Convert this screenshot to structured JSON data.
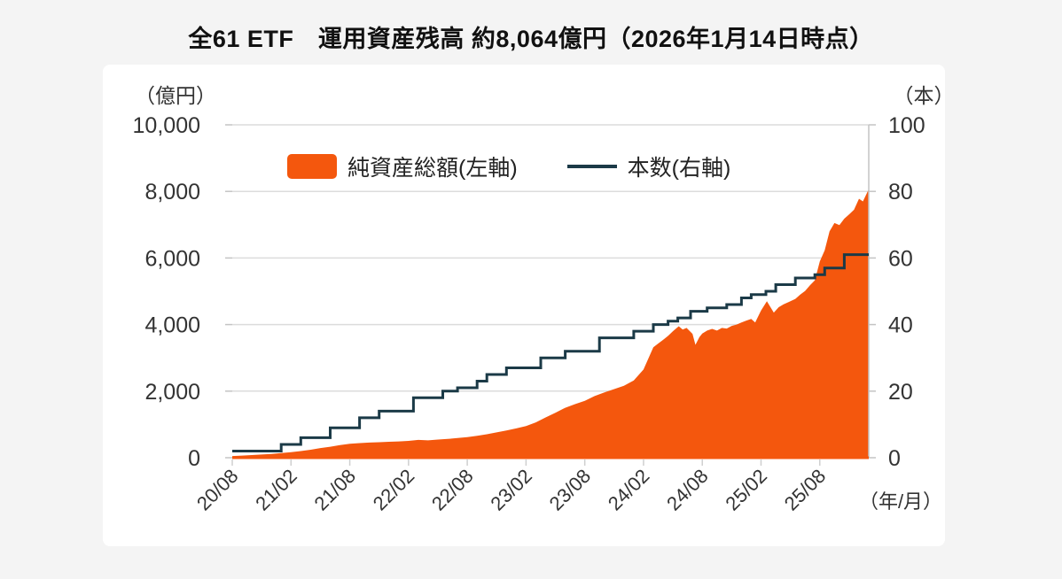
{
  "title": "全61 ETF　運用資産残高 約8,064億円（2026年1月14日時点）",
  "legend": {
    "area_label": "純資産総額(左軸)",
    "line_label": "本数(右軸)"
  },
  "axes_units": {
    "left": "（億円）",
    "right": "（本）",
    "x": "（年/月）"
  },
  "colors": {
    "page_bg": "#F4F4F4",
    "panel_bg": "#FFFFFF",
    "area": "#F4570D",
    "step_line": "#1B3A47",
    "grid": "#DCDCDC",
    "axis": "#C4C4C4",
    "tick_text": "#333333",
    "title_text": "#111111",
    "bottom_axis": "#F4570D"
  },
  "chart_data": {
    "type": "combo",
    "title": "全61 ETF　運用資産残高 約8,064億円（2026年1月14日時点）",
    "x_encoding": "months since 2020/08 (0 = 20/08, 65 = 26/01)",
    "x_axis": {
      "unit": "（年/月）",
      "tick_months": [
        0,
        6,
        12,
        18,
        24,
        30,
        36,
        42,
        48,
        54,
        60
      ],
      "tick_labels": [
        "20/08",
        "21/02",
        "21/08",
        "22/02",
        "22/08",
        "23/02",
        "23/08",
        "24/02",
        "24/08",
        "25/02",
        "25/08"
      ],
      "range_months": [
        0,
        65
      ]
    },
    "left_axis": {
      "unit": "（億円）",
      "tick_labels": [
        "10,000",
        "8,000",
        "6,000",
        "4,000",
        "2,000",
        "0"
      ],
      "tick_values": [
        10000,
        8000,
        6000,
        4000,
        2000,
        0
      ],
      "range": [
        0,
        10000
      ],
      "grid": true
    },
    "right_axis": {
      "unit": "（本）",
      "tick_labels": [
        "100",
        "80",
        "60",
        "40",
        "20",
        "0"
      ],
      "tick_values": [
        100,
        80,
        60,
        40,
        20,
        0
      ],
      "range": [
        0,
        100
      ],
      "grid": false
    },
    "legend_position": "top-inside",
    "series": [
      {
        "name": "純資産総額(左軸)",
        "type": "area",
        "axis": "left",
        "color": "#F4570D",
        "points": [
          [
            0,
            50
          ],
          [
            1,
            65
          ],
          [
            2,
            80
          ],
          [
            3,
            95
          ],
          [
            4,
            115
          ],
          [
            5,
            140
          ],
          [
            6,
            165
          ],
          [
            7,
            200
          ],
          [
            8,
            240
          ],
          [
            9,
            290
          ],
          [
            10,
            330
          ],
          [
            11,
            380
          ],
          [
            12,
            420
          ],
          [
            13,
            440
          ],
          [
            14,
            455
          ],
          [
            15,
            465
          ],
          [
            16,
            480
          ],
          [
            17,
            490
          ],
          [
            18,
            505
          ],
          [
            19,
            535
          ],
          [
            20,
            520
          ],
          [
            21,
            545
          ],
          [
            22,
            565
          ],
          [
            23,
            590
          ],
          [
            24,
            620
          ],
          [
            25,
            660
          ],
          [
            26,
            705
          ],
          [
            27,
            760
          ],
          [
            28,
            820
          ],
          [
            29,
            880
          ],
          [
            30,
            950
          ],
          [
            31,
            1060
          ],
          [
            32,
            1210
          ],
          [
            33,
            1350
          ],
          [
            34,
            1500
          ],
          [
            35,
            1610
          ],
          [
            36,
            1710
          ],
          [
            37,
            1850
          ],
          [
            38,
            1960
          ],
          [
            39,
            2060
          ],
          [
            40,
            2160
          ],
          [
            41,
            2320
          ],
          [
            42,
            2650
          ],
          [
            42.6,
            3050
          ],
          [
            43,
            3320
          ],
          [
            43.5,
            3430
          ],
          [
            44,
            3540
          ],
          [
            44.5,
            3660
          ],
          [
            45,
            3800
          ],
          [
            45.6,
            3950
          ],
          [
            46,
            3850
          ],
          [
            46.4,
            3900
          ],
          [
            47,
            3720
          ],
          [
            47.3,
            3390
          ],
          [
            47.7,
            3620
          ],
          [
            48,
            3730
          ],
          [
            48.5,
            3820
          ],
          [
            49,
            3870
          ],
          [
            49.5,
            3820
          ],
          [
            50,
            3900
          ],
          [
            50.5,
            3880
          ],
          [
            51,
            3960
          ],
          [
            51.5,
            4000
          ],
          [
            52,
            4060
          ],
          [
            52.5,
            4120
          ],
          [
            53,
            4170
          ],
          [
            53.4,
            4060
          ],
          [
            54,
            4420
          ],
          [
            54.6,
            4700
          ],
          [
            55.3,
            4360
          ],
          [
            55.8,
            4520
          ],
          [
            56.3,
            4610
          ],
          [
            57,
            4700
          ],
          [
            57.5,
            4770
          ],
          [
            58,
            4900
          ],
          [
            58.5,
            5010
          ],
          [
            59,
            5180
          ],
          [
            59.5,
            5330
          ],
          [
            60,
            5900
          ],
          [
            60.5,
            6230
          ],
          [
            61,
            6800
          ],
          [
            61.5,
            7050
          ],
          [
            62,
            6990
          ],
          [
            62.5,
            7180
          ],
          [
            63,
            7310
          ],
          [
            63.5,
            7450
          ],
          [
            64,
            7780
          ],
          [
            64.4,
            7700
          ],
          [
            65,
            8064
          ]
        ],
        "final_value": 8064
      },
      {
        "name": "本数(右軸)",
        "type": "line",
        "line_style": "step-after",
        "axis": "right",
        "color": "#1B3A47",
        "points": [
          [
            0,
            2
          ],
          [
            5,
            4
          ],
          [
            7,
            6
          ],
          [
            10,
            9
          ],
          [
            13,
            12
          ],
          [
            15,
            14
          ],
          [
            18.5,
            18
          ],
          [
            21.5,
            20
          ],
          [
            23,
            21
          ],
          [
            25,
            23
          ],
          [
            26,
            25
          ],
          [
            28,
            27
          ],
          [
            31.5,
            30
          ],
          [
            34,
            32
          ],
          [
            37.5,
            36
          ],
          [
            41,
            38
          ],
          [
            43,
            40
          ],
          [
            44.5,
            41
          ],
          [
            45.5,
            42
          ],
          [
            46.8,
            44
          ],
          [
            48.5,
            45
          ],
          [
            50.5,
            46
          ],
          [
            52,
            48
          ],
          [
            53,
            49
          ],
          [
            54.5,
            50
          ],
          [
            55.5,
            52
          ],
          [
            57.5,
            54
          ],
          [
            59.5,
            55
          ],
          [
            60.5,
            57
          ],
          [
            62.5,
            61
          ],
          [
            65,
            61
          ]
        ],
        "final_value": 61
      }
    ]
  }
}
